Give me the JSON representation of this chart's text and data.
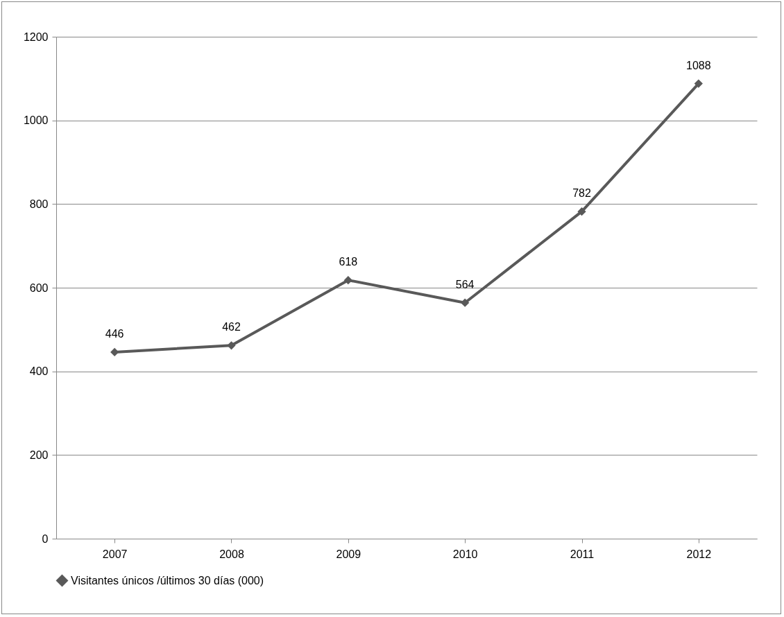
{
  "chart_data": {
    "type": "line",
    "categories": [
      "2007",
      "2008",
      "2009",
      "2010",
      "2011",
      "2012"
    ],
    "series": [
      {
        "name": "Visitantes únicos /últimos 30 días (000)",
        "color": "#595959",
        "values": [
          446,
          462,
          618,
          564,
          782,
          1088
        ]
      }
    ],
    "ylim": [
      0,
      1200
    ],
    "yticks": [
      0,
      200,
      400,
      600,
      800,
      1000,
      1200
    ],
    "grid": "y",
    "legend": "bottom",
    "marker": "diamond",
    "line_style": "solid",
    "data_labels": true
  }
}
